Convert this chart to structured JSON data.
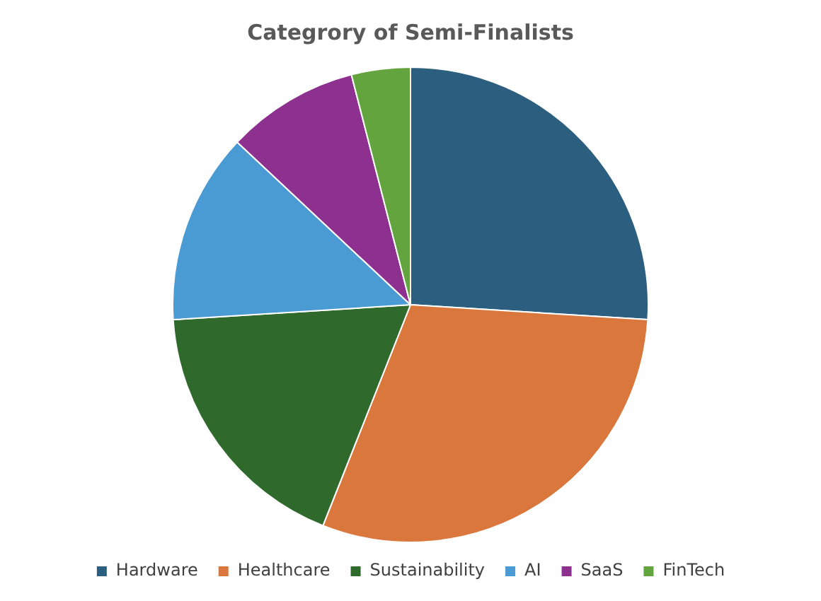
{
  "chart_data": {
    "type": "pie",
    "title": "Categrory of Semi-Finalists",
    "categories": [
      "Hardware",
      "Healthcare",
      "Sustainability",
      "AI",
      "SaaS",
      "FinTech"
    ],
    "values": [
      26,
      30,
      18,
      13,
      9,
      4
    ],
    "colors": [
      "#2c5f7f",
      "#d9773d",
      "#2f6a2c",
      "#4a9bd4",
      "#8e3090",
      "#63a43f"
    ],
    "legend": "bottom"
  }
}
